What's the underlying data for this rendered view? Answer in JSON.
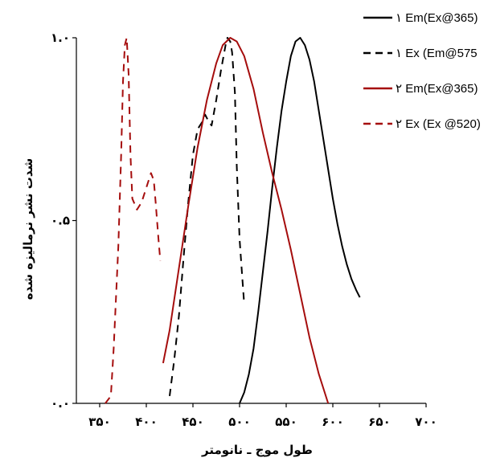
{
  "chart_data": {
    "type": "line",
    "xlabel": "طول موج ـ نانومتر",
    "ylabel": "شدت نشر نرمالیزه شده",
    "xlim": [
      325,
      700
    ],
    "ylim": [
      0,
      1.0
    ],
    "x_ticks": [
      {
        "value": 350,
        "label": "۳۵۰"
      },
      {
        "value": 400,
        "label": "۴۰۰"
      },
      {
        "value": 450,
        "label": "۴۵۰"
      },
      {
        "value": 500,
        "label": "۵۰۰"
      },
      {
        "value": 550,
        "label": "۵۵۰"
      },
      {
        "value": 600,
        "label": "۶۰۰"
      },
      {
        "value": 650,
        "label": "۶۵۰"
      },
      {
        "value": 700,
        "label": "۷۰۰"
      }
    ],
    "y_ticks": [
      {
        "value": 0,
        "label": "۰.۰"
      },
      {
        "value": 0.5,
        "label": "۰.۵"
      },
      {
        "value": 1.0,
        "label": "۱.۰"
      }
    ],
    "grid": false,
    "legend_position": "top-right",
    "series": [
      {
        "name": "۱ Em(Ex@365)",
        "color": "#000000",
        "dash": "solid",
        "points": [
          [
            500,
            0
          ],
          [
            505,
            0.03
          ],
          [
            510,
            0.08
          ],
          [
            515,
            0.15
          ],
          [
            520,
            0.25
          ],
          [
            525,
            0.36
          ],
          [
            530,
            0.47
          ],
          [
            535,
            0.59
          ],
          [
            540,
            0.7
          ],
          [
            545,
            0.8
          ],
          [
            550,
            0.88
          ],
          [
            555,
            0.95
          ],
          [
            560,
            0.99
          ],
          [
            565,
            1.0
          ],
          [
            570,
            0.98
          ],
          [
            575,
            0.94
          ],
          [
            580,
            0.88
          ],
          [
            585,
            0.8
          ],
          [
            590,
            0.72
          ],
          [
            595,
            0.64
          ],
          [
            600,
            0.56
          ],
          [
            605,
            0.49
          ],
          [
            610,
            0.43
          ],
          [
            615,
            0.38
          ],
          [
            620,
            0.34
          ],
          [
            625,
            0.31
          ],
          [
            629,
            0.29
          ]
        ]
      },
      {
        "name": "۱ Ex (Em@575",
        "color": "#000000",
        "dash": "dashed",
        "points": [
          [
            425,
            0.02
          ],
          [
            430,
            0.12
          ],
          [
            435,
            0.24
          ],
          [
            440,
            0.4
          ],
          [
            445,
            0.55
          ],
          [
            450,
            0.68
          ],
          [
            455,
            0.75
          ],
          [
            460,
            0.77
          ],
          [
            463,
            0.79
          ],
          [
            467,
            0.77
          ],
          [
            470,
            0.76
          ],
          [
            475,
            0.83
          ],
          [
            480,
            0.91
          ],
          [
            485,
            0.98
          ],
          [
            487,
            1.0
          ],
          [
            490,
            0.99
          ],
          [
            492,
            0.96
          ],
          [
            495,
            0.85
          ],
          [
            497,
            0.65
          ],
          [
            500,
            0.45
          ],
          [
            503,
            0.34
          ],
          [
            505,
            0.27
          ]
        ]
      },
      {
        "name": "۲ Em(Ex@365)",
        "color": "#a50d0d",
        "dash": "solid",
        "points": [
          [
            418,
            0.11
          ],
          [
            425,
            0.2
          ],
          [
            435,
            0.37
          ],
          [
            445,
            0.54
          ],
          [
            455,
            0.7
          ],
          [
            465,
            0.83
          ],
          [
            475,
            0.93
          ],
          [
            482,
            0.98
          ],
          [
            490,
            1.0
          ],
          [
            497,
            0.99
          ],
          [
            505,
            0.95
          ],
          [
            515,
            0.86
          ],
          [
            525,
            0.74
          ],
          [
            535,
            0.63
          ],
          [
            545,
            0.53
          ],
          [
            555,
            0.42
          ],
          [
            565,
            0.3
          ],
          [
            575,
            0.18
          ],
          [
            585,
            0.08
          ],
          [
            595,
            0.0
          ]
        ]
      },
      {
        "name": "۲ Ex (Ex @520)",
        "color": "#a50d0d",
        "dash": "dashed",
        "points": [
          [
            356,
            0.0
          ],
          [
            362,
            0.02
          ],
          [
            365,
            0.15
          ],
          [
            370,
            0.43
          ],
          [
            373,
            0.68
          ],
          [
            375,
            0.88
          ],
          [
            377,
            0.98
          ],
          [
            379,
            1.0
          ],
          [
            381,
            0.9
          ],
          [
            383,
            0.68
          ],
          [
            385,
            0.56
          ],
          [
            390,
            0.53
          ],
          [
            395,
            0.55
          ],
          [
            400,
            0.59
          ],
          [
            405,
            0.63
          ],
          [
            408,
            0.61
          ],
          [
            410,
            0.55
          ],
          [
            413,
            0.45
          ],
          [
            415,
            0.39
          ]
        ]
      }
    ]
  }
}
